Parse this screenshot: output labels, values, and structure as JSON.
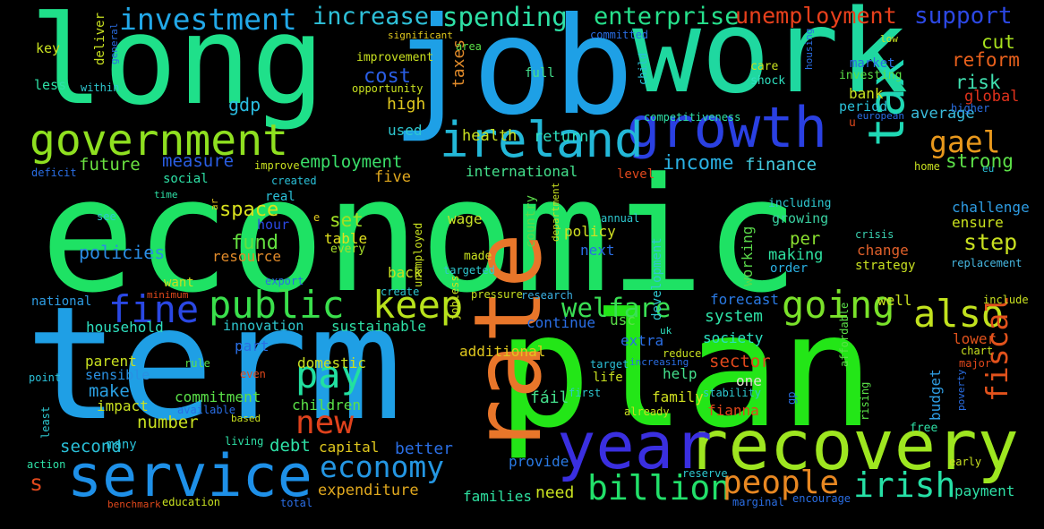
{
  "cloud": {
    "background": "#000000",
    "words": [
      {
        "text": "economic",
        "color": "#1ee264"
      },
      {
        "text": "term",
        "color": "#1f9fe5"
      },
      {
        "text": "plan",
        "color": "#23e617"
      },
      {
        "text": "job",
        "color": "#1ea0e6"
      },
      {
        "text": "long",
        "color": "#1fe08a"
      },
      {
        "text": "work",
        "color": "#1fd8a0"
      },
      {
        "text": "rate",
        "color": "#e8762a"
      },
      {
        "text": "recovery",
        "color": "#9ee620"
      },
      {
        "text": "year",
        "color": "#3a2fe0"
      },
      {
        "text": "service",
        "color": "#1e90e8"
      },
      {
        "text": "growth",
        "color": "#2a40e2"
      },
      {
        "text": "ireland",
        "color": "#23b8d8"
      },
      {
        "text": "tax",
        "color": "#1fd8b4"
      },
      {
        "text": "government",
        "color": "#8fe020"
      },
      {
        "text": "public",
        "color": "#3ae04c"
      },
      {
        "text": "fine",
        "color": "#2a48e4"
      },
      {
        "text": "keep",
        "color": "#b8e21c"
      },
      {
        "text": "going",
        "color": "#7ae22a"
      },
      {
        "text": "also",
        "color": "#c2e21e"
      },
      {
        "text": "pay",
        "color": "#22e0a0"
      },
      {
        "text": "billion",
        "color": "#22e06a"
      },
      {
        "text": "people",
        "color": "#e88822"
      },
      {
        "text": "irish",
        "color": "#26e0a6"
      },
      {
        "text": "economy",
        "color": "#2496e2"
      },
      {
        "text": "new",
        "color": "#e0421c"
      },
      {
        "text": "fiscal",
        "color": "#e2521c"
      },
      {
        "text": "welfare",
        "color": "#3ae054"
      },
      {
        "text": "investment",
        "color": "#22a8e8"
      },
      {
        "text": "increase",
        "color": "#2ec0d8"
      },
      {
        "text": "spending",
        "color": "#2ee0a6"
      },
      {
        "text": "enterprise",
        "color": "#26e08c"
      },
      {
        "text": "unemployment",
        "color": "#e8401c"
      },
      {
        "text": "support",
        "color": "#2c48e4"
      },
      {
        "text": "gael",
        "color": "#e8981c"
      },
      {
        "text": "cut",
        "color": "#a8e21e"
      },
      {
        "text": "reform",
        "color": "#e8601c"
      },
      {
        "text": "risk",
        "color": "#40e0b0"
      },
      {
        "text": "global",
        "color": "#e0321c"
      },
      {
        "text": "average",
        "color": "#3abcdc"
      },
      {
        "text": "strong",
        "color": "#5ce048"
      },
      {
        "text": "step",
        "color": "#c8e020"
      },
      {
        "text": "income",
        "color": "#2ab0e2"
      },
      {
        "text": "finance",
        "color": "#44cce0"
      },
      {
        "text": "cost",
        "color": "#2a5ee4"
      },
      {
        "text": "high",
        "color": "#e0c81e"
      },
      {
        "text": "gdp",
        "color": "#2abce0"
      },
      {
        "text": "future",
        "color": "#6ae040"
      },
      {
        "text": "measure",
        "color": "#2a5ee4"
      },
      {
        "text": "employment",
        "color": "#3ae06a"
      },
      {
        "text": "space",
        "color": "#d8e01e"
      },
      {
        "text": "fund",
        "color": "#64e040"
      },
      {
        "text": "policies",
        "color": "#2a8ce2"
      },
      {
        "text": "set",
        "color": "#a0e024"
      },
      {
        "text": "table",
        "color": "#e0e01e"
      },
      {
        "text": "every",
        "color": "#a8e02a"
      },
      {
        "text": "resource",
        "color": "#e08a2a"
      },
      {
        "text": "wage",
        "color": "#c8e028"
      },
      {
        "text": "country",
        "color": "#5ad84a"
      },
      {
        "text": "policy",
        "color": "#d2e022"
      },
      {
        "text": "next",
        "color": "#2a6ee4"
      },
      {
        "text": "per",
        "color": "#8ae030"
      },
      {
        "text": "making",
        "color": "#2ee0a0"
      },
      {
        "text": "order",
        "color": "#2ab0e2"
      },
      {
        "text": "working",
        "color": "#5ad84a"
      },
      {
        "text": "challenge",
        "color": "#2e9ce2"
      },
      {
        "text": "ensure",
        "color": "#c8e01e"
      },
      {
        "text": "change",
        "color": "#e0602a"
      },
      {
        "text": "strategy",
        "color": "#c8e020"
      },
      {
        "text": "replacement",
        "color": "#46b8e2"
      },
      {
        "text": "crisis",
        "color": "#3ad0b0"
      },
      {
        "text": "growing",
        "color": "#3ad0a0"
      },
      {
        "text": "including",
        "color": "#2ec8d0"
      },
      {
        "text": "system",
        "color": "#2ee0a6"
      },
      {
        "text": "forecast",
        "color": "#2a7ae4"
      },
      {
        "text": "society",
        "color": "#2ae0c0"
      },
      {
        "text": "sector",
        "color": "#e0481c"
      },
      {
        "text": "help",
        "color": "#44e08c"
      },
      {
        "text": "one",
        "color": "#e0e0d0"
      },
      {
        "text": "family",
        "color": "#d0e020"
      },
      {
        "text": "fianna",
        "color": "#e0481c"
      },
      {
        "text": "budget",
        "color": "#2e9ce2"
      },
      {
        "text": "lower",
        "color": "#e0521c"
      },
      {
        "text": "well",
        "color": "#c8e020"
      },
      {
        "text": "usc",
        "color": "#5ae048"
      },
      {
        "text": "extra",
        "color": "#2a6ee4"
      },
      {
        "text": "continue",
        "color": "#2a6ee4"
      },
      {
        "text": "sustainable",
        "color": "#2ee0a6"
      },
      {
        "text": "household",
        "color": "#2ee0c0"
      },
      {
        "text": "innovation",
        "color": "#2ec8d0"
      },
      {
        "text": "part",
        "color": "#2a6ee4"
      },
      {
        "text": "parent",
        "color": "#c8e020"
      },
      {
        "text": "sensible",
        "color": "#2a90e2"
      },
      {
        "text": "make",
        "color": "#2aa0e2"
      },
      {
        "text": "impact",
        "color": "#c8e020"
      },
      {
        "text": "commitment",
        "color": "#5ae048"
      },
      {
        "text": "number",
        "color": "#c8e020"
      },
      {
        "text": "second",
        "color": "#2ac0d8"
      },
      {
        "text": "debt",
        "color": "#2ee0a6"
      },
      {
        "text": "capital",
        "color": "#e0c81e"
      },
      {
        "text": "better",
        "color": "#2a6ee4"
      },
      {
        "text": "expenditure",
        "color": "#e0a81e"
      },
      {
        "text": "provide",
        "color": "#2a7ae4"
      },
      {
        "text": "families",
        "color": "#2ee0a0"
      },
      {
        "text": "need",
        "color": "#c8e020"
      },
      {
        "text": "payment",
        "color": "#2ee0a6"
      },
      {
        "text": "children",
        "color": "#5ae048"
      },
      {
        "text": "domestic",
        "color": "#c8e020"
      },
      {
        "text": "additional",
        "color": "#e0c81e"
      },
      {
        "text": "fáil",
        "color": "#44e08c"
      },
      {
        "text": "back",
        "color": "#c8e020"
      },
      {
        "text": "made",
        "color": "#c8e020"
      },
      {
        "text": "targeted",
        "color": "#2ec8d0"
      },
      {
        "text": "pressure",
        "color": "#c8e020"
      },
      {
        "text": "research",
        "color": "#3ab0e2"
      },
      {
        "text": "want",
        "color": "#c8e020"
      },
      {
        "text": "minimum",
        "color": "#e0481c"
      },
      {
        "text": "national",
        "color": "#2e9ce2"
      },
      {
        "text": "export",
        "color": "#2a6ee4"
      },
      {
        "text": "create",
        "color": "#2ec8d0"
      },
      {
        "text": "hour",
        "color": "#2a48e4"
      },
      {
        "text": "real",
        "color": "#2ac0d8"
      },
      {
        "text": "created",
        "color": "#2ac0d8"
      },
      {
        "text": "time",
        "color": "#2ee0a6"
      },
      {
        "text": "see",
        "color": "#2ec8d0"
      },
      {
        "text": "deficit",
        "color": "#2a6ee4"
      },
      {
        "text": "social",
        "color": "#2ee0a6"
      },
      {
        "text": "improve",
        "color": "#c8e020"
      },
      {
        "text": "five",
        "color": "#e0a81e"
      },
      {
        "text": "international",
        "color": "#44e08c"
      },
      {
        "text": "health",
        "color": "#c8e020"
      },
      {
        "text": "return",
        "color": "#2ee0c0"
      },
      {
        "text": "used",
        "color": "#2ec8d0"
      },
      {
        "text": "taxes",
        "color": "#e08a2a"
      },
      {
        "text": "full",
        "color": "#44e08c"
      },
      {
        "text": "improvement",
        "color": "#c8e020"
      },
      {
        "text": "opportunity",
        "color": "#c8e020"
      },
      {
        "text": "significant",
        "color": "#e0c81e"
      },
      {
        "text": "area",
        "color": "#5ae048"
      },
      {
        "text": "committed",
        "color": "#2a6ee4"
      },
      {
        "text": "competitiveness",
        "color": "#2ee0a6"
      },
      {
        "text": "child",
        "color": "#2ac0d8"
      },
      {
        "text": "housing",
        "color": "#2a6ee4"
      },
      {
        "text": "care",
        "color": "#c8e020"
      },
      {
        "text": "shock",
        "color": "#2ee0c0"
      },
      {
        "text": "market",
        "color": "#2a6ee4"
      },
      {
        "text": "investing",
        "color": "#5ae048"
      },
      {
        "text": "bank",
        "color": "#c8e020"
      },
      {
        "text": "period",
        "color": "#2ac0d8"
      },
      {
        "text": "european",
        "color": "#2a6ee4"
      },
      {
        "text": "higher",
        "color": "#2a6ee4"
      },
      {
        "text": "low",
        "color": "#c8e020"
      },
      {
        "text": "u",
        "color": "#e0481c"
      },
      {
        "text": "home",
        "color": "#c8e020"
      },
      {
        "text": "eu",
        "color": "#2ac0d8"
      },
      {
        "text": "level",
        "color": "#e0481c"
      },
      {
        "text": "annual",
        "color": "#2ec8d0"
      },
      {
        "text": "department",
        "color": "#c8e020"
      },
      {
        "text": "unemployed",
        "color": "#c8e020"
      },
      {
        "text": "jobless",
        "color": "#c8e020"
      },
      {
        "text": "development",
        "color": "#2ec8d0"
      },
      {
        "text": "uk",
        "color": "#2ee0c0"
      },
      {
        "text": "reduce",
        "color": "#c8e020"
      },
      {
        "text": "increasing",
        "color": "#2a6ee4"
      },
      {
        "text": "target",
        "color": "#2ac0d8"
      },
      {
        "text": "life",
        "color": "#c8e020"
      },
      {
        "text": "first",
        "color": "#2ec8d0"
      },
      {
        "text": "already",
        "color": "#c8e020"
      },
      {
        "text": "stability",
        "color": "#2ec8d0"
      },
      {
        "text": "gp",
        "color": "#2a6ee4"
      },
      {
        "text": "affordable",
        "color": "#5ae048"
      },
      {
        "text": "rising",
        "color": "#5ae048"
      },
      {
        "text": "poverty",
        "color": "#2a6ee4"
      },
      {
        "text": "free",
        "color": "#2ee0a6"
      },
      {
        "text": "chart",
        "color": "#c8e020"
      },
      {
        "text": "major",
        "color": "#e0481c"
      },
      {
        "text": "early",
        "color": "#c8e020"
      },
      {
        "text": "include",
        "color": "#c8e020"
      },
      {
        "text": "reserve",
        "color": "#2ec8d0"
      },
      {
        "text": "marginal",
        "color": "#2a6ee4"
      },
      {
        "text": "encourage",
        "color": "#2a6ee4"
      },
      {
        "text": "total",
        "color": "#2a6ee4"
      },
      {
        "text": "education",
        "color": "#c8e020"
      },
      {
        "text": "benchmark",
        "color": "#e0481c"
      },
      {
        "text": "action",
        "color": "#2ee0a6"
      },
      {
        "text": "least",
        "color": "#2ec8d0"
      },
      {
        "text": "s",
        "color": "#e0481c"
      },
      {
        "text": "based",
        "color": "#c8e020"
      },
      {
        "text": "living",
        "color": "#2ee0a6"
      },
      {
        "text": "many",
        "color": "#2ac0d8"
      },
      {
        "text": "available",
        "color": "#2a6ee4"
      },
      {
        "text": "even",
        "color": "#e0481c"
      },
      {
        "text": "rule",
        "color": "#5ae048"
      },
      {
        "text": "point",
        "color": "#2ac0d8"
      },
      {
        "text": "within",
        "color": "#2ec8d0"
      },
      {
        "text": "general",
        "color": "#2a6ee4"
      },
      {
        "text": "deliver",
        "color": "#c8e020"
      },
      {
        "text": "key",
        "color": "#c8e020"
      },
      {
        "text": "less",
        "color": "#2ee0a6"
      },
      {
        "text": "ar",
        "color": "#e0c81e"
      },
      {
        "text": "e",
        "color": "#e0c81e"
      }
    ]
  }
}
